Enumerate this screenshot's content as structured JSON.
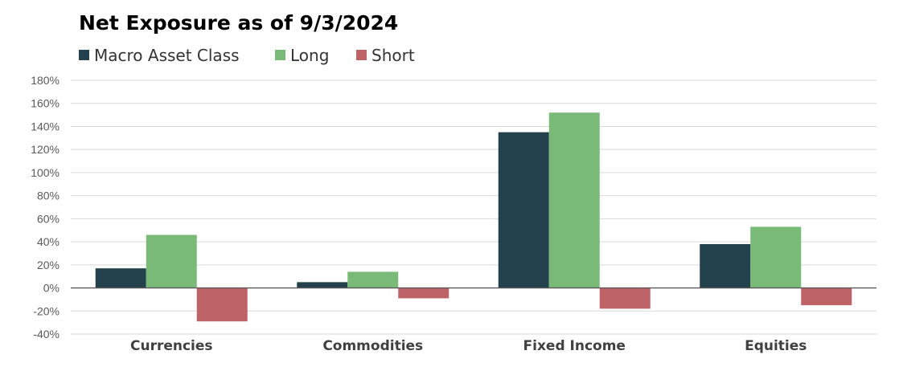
{
  "chart_data": {
    "type": "bar",
    "title": "Net Exposure as of 9/3/2024",
    "categories": [
      "Currencies",
      "Commodities",
      "Fixed Income",
      "Equities"
    ],
    "series": [
      {
        "name": "Macro Asset Class",
        "color": "#23424d",
        "values": [
          17,
          5,
          135,
          38
        ]
      },
      {
        "name": "Long",
        "color": "#7aba79",
        "values": [
          46,
          14,
          152,
          53
        ]
      },
      {
        "name": "Short",
        "color": "#bd6367",
        "values": [
          -29,
          -9,
          -18,
          -15
        ]
      }
    ],
    "ylim": [
      -40,
      180
    ],
    "yticks": [
      180,
      160,
      140,
      120,
      100,
      80,
      60,
      40,
      20,
      0,
      -20,
      -40
    ],
    "ytick_labels": [
      "180%",
      "160%",
      "140%",
      "120%",
      "100%",
      "80%",
      "60%",
      "40%",
      "20%",
      "0%",
      "-20%",
      "-40%"
    ],
    "xlabel": "",
    "ylabel": "",
    "grid": true,
    "legend_position": "top-left"
  }
}
